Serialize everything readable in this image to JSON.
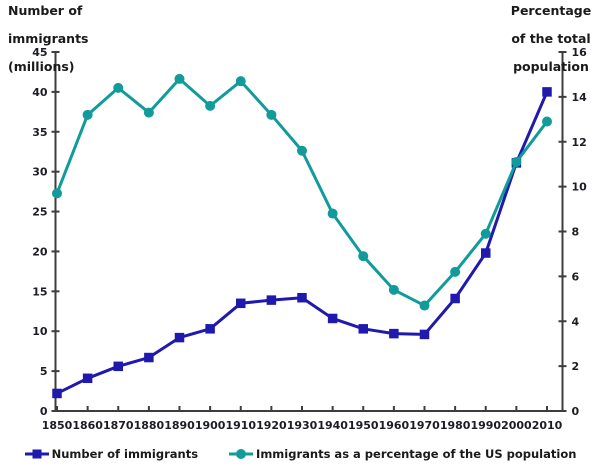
{
  "chart_data": {
    "type": "line",
    "title": "",
    "x_categories": [
      "1850",
      "1860",
      "1870",
      "1880",
      "1890",
      "1900",
      "1910",
      "1920",
      "1930",
      "1940",
      "1950",
      "1960",
      "1970",
      "1980",
      "1990",
      "2000",
      "2010"
    ],
    "series": [
      {
        "name": "Number of immigrants",
        "axis": "left",
        "color": "#1f1aad",
        "marker": "square",
        "values": [
          2.2,
          4.1,
          5.6,
          6.7,
          9.2,
          10.3,
          13.5,
          13.9,
          14.2,
          11.6,
          10.3,
          9.7,
          9.6,
          14.1,
          19.8,
          31.1,
          40.0
        ]
      },
      {
        "name": "Immigrants as a percentage of the US population",
        "axis": "right",
        "color": "#129b9b",
        "marker": "circle",
        "values": [
          9.7,
          13.2,
          14.4,
          13.3,
          14.8,
          13.6,
          14.7,
          13.2,
          11.6,
          8.8,
          6.9,
          5.4,
          4.7,
          6.2,
          7.9,
          11.1,
          12.9
        ]
      }
    ],
    "left_axis": {
      "title_lines": [
        "Number of",
        "immigrants",
        "(millions)"
      ],
      "min": 0,
      "max": 45,
      "tick_step": 5
    },
    "right_axis": {
      "title_lines": [
        "Percentage",
        "of the total",
        "population"
      ],
      "min": 0,
      "max": 16,
      "tick_step": 2
    },
    "grid": false,
    "legend_position": "bottom",
    "axis_color": "#3d3d3d",
    "label_color": "#1c1c24"
  }
}
